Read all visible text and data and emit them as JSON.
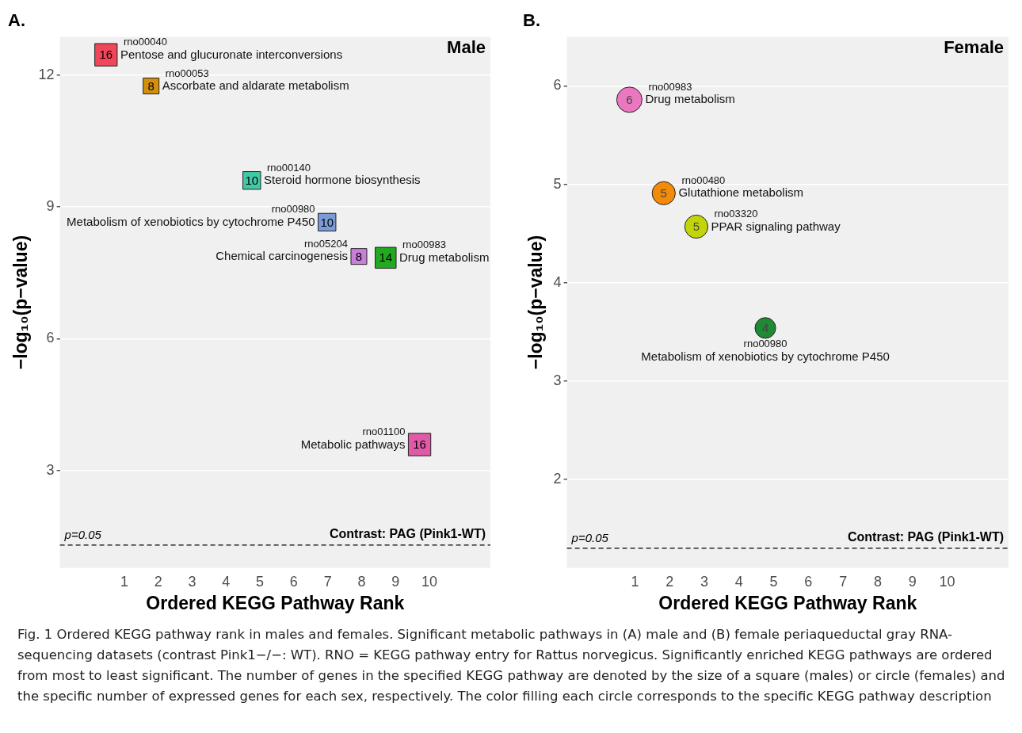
{
  "chart_data": [
    {
      "type": "bubble",
      "title": "A.",
      "subtitle": "Male",
      "xlabel": "Ordered KEGG Pathway Rank",
      "ylabel": "−log₁₀(p−value)",
      "x": [
        0.46,
        1.79,
        4.76,
        6.98,
        7.92,
        8.71,
        9.71
      ],
      "values": [
        12.46,
        11.75,
        9.6,
        8.65,
        7.87,
        7.84,
        3.59
      ],
      "sizes": [
        16,
        8,
        10,
        10,
        8,
        14,
        16
      ],
      "value_labels": [
        "16",
        "8",
        "10",
        "10",
        "8",
        "14",
        "16"
      ],
      "colors": [
        "#f0465a",
        "#d4900a",
        "#3fc9a5",
        "#7b9bd6",
        "#c77fd7",
        "#21a91f",
        "#e05aa8"
      ],
      "marker": "square",
      "xlim": [
        -0.9,
        11.8
      ],
      "xticks": [
        1,
        2,
        3,
        4,
        5,
        6,
        7,
        8,
        9,
        10
      ],
      "ylim": [
        0.78,
        12.87
      ],
      "yticks": [
        3,
        6,
        9,
        12
      ],
      "grid": "y",
      "ref_lines": [
        {
          "axis": "y",
          "value": 1.3,
          "line_style": "dashed",
          "color": "#000000"
        }
      ],
      "annotations": [
        "Contrast: PAG (Pink1-WT)",
        {
          "text": "p=0.05",
          "y": 1.3
        },
        {
          "text": "rno00040",
          "x": 0.46,
          "y": 12.46
        },
        {
          "text": "Pentose and glucuronate interconversions",
          "x": 0.46,
          "y": 12.46
        },
        {
          "text": "rno00053",
          "x": 1.79,
          "y": 11.75
        },
        {
          "text": "Ascorbate and aldarate metabolism",
          "x": 1.79,
          "y": 11.75
        },
        {
          "text": "rno00140",
          "x": 4.76,
          "y": 9.6
        },
        {
          "text": "Steroid hormone biosynthesis",
          "x": 4.76,
          "y": 9.6
        },
        {
          "text": "rno00980",
          "x": 6.98,
          "y": 8.65
        },
        {
          "text": "Metabolism of xenobiotics by cytochrome P450",
          "x": 6.98,
          "y": 8.65
        },
        {
          "text": "rno05204",
          "x": 7.92,
          "y": 7.87
        },
        {
          "text": "Chemical carcinogenesis",
          "x": 7.92,
          "y": 7.87
        },
        {
          "text": "rno00983",
          "x": 8.71,
          "y": 7.84
        },
        {
          "text": "Drug metabolism",
          "x": 8.71,
          "y": 7.84
        },
        {
          "text": "rno01100",
          "x": 9.71,
          "y": 3.59
        },
        {
          "text": "Metabolic pathways",
          "x": 9.71,
          "y": 3.59
        },
        "Fig. 1 Ordered KEGG pathway rank in males and females. Significant metabolic pathways in (A) male and (B) female periaqueductal gray RNA-sequencing datasets (contrast Pink1−/−: WT). RNO = KEGG pathway entry for Rattus norvegicus. Significantly enriched KEGG pathways are ordered from most to least significant. The number of genes in the specified KEGG pathway are denoted by the size of a square (males) or circle (females) and the specific number of expressed genes for each sex, respectively. The color filling each circle corresponds to the specific KEGG pathway description"
      ]
    },
    {
      "type": "bubble",
      "title": "B.",
      "subtitle": "Female",
      "xlabel": "Ordered KEGG Pathway Rank",
      "ylabel": "−log₁₀(p−value)",
      "x": [
        0.84,
        1.83,
        2.77,
        4.76
      ],
      "values": [
        5.86,
        4.91,
        4.57,
        3.54
      ],
      "sizes": [
        6,
        5,
        5,
        4
      ],
      "value_labels": [
        "6",
        "5",
        "5",
        "4"
      ],
      "colors": [
        "#ec77c1",
        "#f28a0a",
        "#c2d40a",
        "#1f8a34"
      ],
      "marker": "circle",
      "xlim": [
        -0.96,
        11.77
      ],
      "xticks": [
        1,
        2,
        3,
        4,
        5,
        6,
        7,
        8,
        9,
        10
      ],
      "ylim": [
        1.1,
        6.5
      ],
      "yticks": [
        2,
        3,
        4,
        5,
        6
      ],
      "grid": "y",
      "ref_lines": [
        {
          "axis": "y",
          "value": 1.3,
          "line_style": "dashed",
          "color": "#000000"
        }
      ],
      "annotations": [
        "Contrast: PAG (Pink1-WT)",
        {
          "text": "p=0.05",
          "y": 1.3
        },
        {
          "text": "rno00983",
          "x": 0.84,
          "y": 5.86
        },
        {
          "text": "Drug metabolism",
          "x": 0.84,
          "y": 5.86
        },
        {
          "text": "rno00480",
          "x": 1.83,
          "y": 4.91
        },
        {
          "text": "Glutathione metabolism",
          "x": 1.83,
          "y": 4.91
        },
        {
          "text": "rno03320",
          "x": 2.77,
          "y": 4.57
        },
        {
          "text": "PPAR signaling pathway",
          "x": 2.77,
          "y": 4.57
        },
        {
          "text": "rno00980",
          "x": 4.76,
          "y": 3.54
        },
        {
          "text": "Metabolism of xenobiotics by cytochrome P450",
          "x": 4.76,
          "y": 3.54
        }
      ]
    }
  ]
}
